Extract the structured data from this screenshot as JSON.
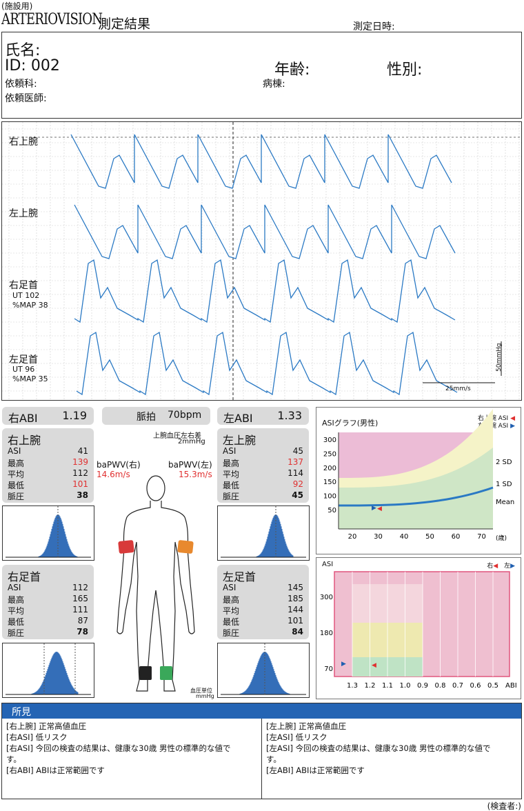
{
  "header": {
    "facility_label": "(施設用)",
    "brand": "ARTERIOVISION",
    "report_title": "測定結果",
    "measure_datetime_label": "測定日時:"
  },
  "patient": {
    "name_label": "氏名:",
    "id_label": "ID: 002",
    "age_label": "年齢:",
    "sex_label": "性別:",
    "dept_label": "依頼科:",
    "ward_label": "病棟:",
    "doctor_label": "依頼医師:"
  },
  "waveforms": {
    "channels": [
      {
        "label": "右上腕"
      },
      {
        "label": "左上腕"
      },
      {
        "label": "右足首",
        "ut": "UT 102",
        "map": "%MAP 38"
      },
      {
        "label": "左足首",
        "ut": "UT 96",
        "map": "%MAP 35"
      }
    ],
    "scale_label": "50mmHg",
    "speed_label": "25mm/s"
  },
  "summary": {
    "right_abi_label": "右ABI",
    "right_abi_value": "1.19",
    "pulse_label": "脈拍",
    "pulse_value": "70bpm",
    "left_abi_label": "左ABI",
    "left_abi_value": "1.33",
    "bp_diff_label": "上腕血圧左右差",
    "bp_diff_value": "2mmHg",
    "pwv_right_label": "baPWV(右)",
    "pwv_right_value": "14.6m/s",
    "pwv_left_label": "baPWV(左)",
    "pwv_left_value": "15.3m/s",
    "bp_unit_label": "血圧単位",
    "bp_unit": "mmHg",
    "limb_colors": {
      "right_arm": "#d83a3a",
      "left_arm": "#e8892e",
      "right_ankle": "#222222",
      "left_ankle": "#3aa85a"
    }
  },
  "limbs": {
    "right_arm": {
      "title": "右上腕",
      "rows": [
        [
          "ASI",
          "41"
        ],
        [
          "最高",
          "139"
        ],
        [
          "平均",
          "112"
        ],
        [
          "最低",
          "101"
        ],
        [
          "脈圧",
          "38"
        ]
      ]
    },
    "left_arm": {
      "title": "左上腕",
      "rows": [
        [
          "ASI",
          "45"
        ],
        [
          "最高",
          "137"
        ],
        [
          "平均",
          "114"
        ],
        [
          "最低",
          "92"
        ],
        [
          "脈圧",
          "45"
        ]
      ]
    },
    "right_ankle": {
      "title": "右足首",
      "rows": [
        [
          "ASI",
          "112"
        ],
        [
          "最高",
          "165"
        ],
        [
          "平均",
          "111"
        ],
        [
          "最低",
          "87"
        ],
        [
          "脈圧",
          "78"
        ]
      ]
    },
    "left_ankle": {
      "title": "左足首",
      "rows": [
        [
          "ASI",
          "145"
        ],
        [
          "最高",
          "185"
        ],
        [
          "平均",
          "144"
        ],
        [
          "最低",
          "101"
        ],
        [
          "脈圧",
          "84"
        ]
      ]
    }
  },
  "asi_graph": {
    "title": "ASIグラフ(男性)",
    "legend_right": "右上腕 ASI",
    "legend_left": "左上腕 ASI",
    "y_ticks": [
      "300",
      "250",
      "200",
      "150",
      "100",
      "50"
    ],
    "x_ticks": [
      "20",
      "30",
      "40",
      "50",
      "60",
      "70"
    ],
    "x_unit": "(歳)",
    "band_labels": [
      "2 SD",
      "1 SD",
      "Mean"
    ],
    "colors": {
      "right_marker": "#e03030",
      "left_marker": "#1f5fb0"
    }
  },
  "abi_graph": {
    "y_label": "ASI",
    "legend_right": "右",
    "legend_left": "左",
    "y_ticks": [
      "300",
      "180",
      "70"
    ],
    "x_ticks": [
      "1.3",
      "1.2",
      "1.1",
      "1.0",
      "0.9",
      "0.8",
      "0.7",
      "0.6",
      "0.5"
    ],
    "x_unit": "ABI"
  },
  "findings": {
    "title": "所見",
    "left_lines": [
      "[右上腕] 正常高値血圧",
      "[右ASI] 低リスク",
      "[右ASI] 今回の検査の結果は、健康な30歳 男性の標準的な値で",
      "す。",
      "[右ABI] ABIは正常範囲です"
    ],
    "right_lines": [
      "[左上腕] 正常高値血圧",
      "[左ASI] 低リスク",
      "[左ASI] 今回の検査の結果は、健康な30歳 男性の標準的な値で",
      "す。",
      "[左ABI] ABIは正常範囲です"
    ],
    "examiner_label": "(検査者:)"
  }
}
